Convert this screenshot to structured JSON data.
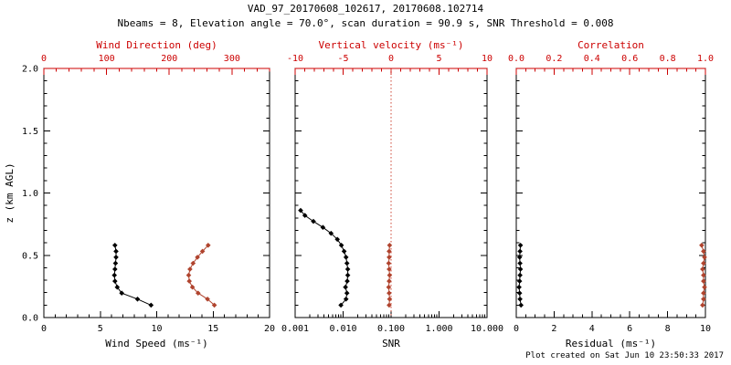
{
  "header": {
    "title": "VAD_97_20170608_102617, 20170608.102714",
    "subtitle": "Nbeams = 8, Elevation angle = 70.0°, scan duration = 90.9 s, SNR Threshold = 0.008"
  },
  "footer": {
    "created": "Plot created on Sat Jun 10 23:50:33 2017"
  },
  "chart_data": {
    "type": "line",
    "title": "VAD_97_20170608_102617, 20170608.102714",
    "subtitle": "Nbeams = 8, Elevation angle = 70.0°, scan duration = 90.9 s, SNR Threshold = 0.008",
    "colors": {
      "axis_black": "#000000",
      "axis_red": "#cc0000",
      "series_red": "#b0442e"
    },
    "y_axis": {
      "label": "z (km AGL)",
      "min": 0,
      "max": 2,
      "major_ticks": [
        0,
        0.5,
        1,
        1.5,
        2
      ],
      "tick_labels": [
        "0.0",
        "0.5",
        "1.0",
        "1.5",
        "2.0"
      ],
      "minor_step": 0.1
    },
    "panels": [
      {
        "name": "wind",
        "bottom_axis": {
          "label": "Wind Speed (ms⁻¹)",
          "scale": "linear",
          "min": 0,
          "max": 20,
          "major_ticks": [
            0,
            5,
            10,
            15,
            20
          ],
          "tick_labels": [
            "0",
            "5",
            "10",
            "15",
            "20"
          ],
          "minor_step": 1,
          "color": "#000000"
        },
        "top_axis": {
          "label": "Wind Direction (deg)",
          "scale": "linear",
          "min": 0,
          "max": 360,
          "major_ticks": [
            0,
            100,
            200,
            300
          ],
          "tick_labels": [
            "0",
            "100",
            "200",
            "300"
          ],
          "minor_step": 20,
          "color": "#cc0000"
        },
        "series": [
          {
            "name": "wind-speed",
            "axis": "bottom",
            "color": "#000000",
            "z": [
              0.1,
              0.148,
              0.196,
              0.244,
              0.292,
              0.34,
              0.388,
              0.436,
              0.484,
              0.532,
              0.58
            ],
            "v": [
              9.5,
              8.3,
              6.9,
              6.5,
              6.3,
              6.25,
              6.3,
              6.35,
              6.4,
              6.4,
              6.3
            ]
          },
          {
            "name": "wind-direction",
            "axis": "top",
            "color": "#b0442e",
            "z": [
              0.1,
              0.148,
              0.196,
              0.244,
              0.292,
              0.34,
              0.388,
              0.436,
              0.484,
              0.532,
              0.58
            ],
            "v": [
              272,
              261,
              246,
              237,
              232,
              231,
              233,
              238,
              245,
              253,
              262
            ]
          }
        ],
        "ref_lines": []
      },
      {
        "name": "snr",
        "bottom_axis": {
          "label": "SNR",
          "scale": "log",
          "min": 0.001,
          "max": 10,
          "major_ticks": [
            0.001,
            0.01,
            0.1,
            1,
            10
          ],
          "tick_labels": [
            "0.001",
            "0.010",
            "0.100",
            "1.000",
            "10.000"
          ],
          "color": "#000000"
        },
        "top_axis": {
          "label": "Vertical velocity (ms⁻¹)",
          "scale": "linear",
          "min": -10,
          "max": 10,
          "major_ticks": [
            -10,
            -5,
            0,
            5,
            10
          ],
          "tick_labels": [
            "-10",
            "-5",
            "0",
            "5",
            "10"
          ],
          "minor_step": 1,
          "color": "#cc0000"
        },
        "series": [
          {
            "name": "snr-profile",
            "axis": "bottom",
            "color": "#000000",
            "z": [
              0.1,
              0.148,
              0.196,
              0.244,
              0.292,
              0.34,
              0.388,
              0.436,
              0.484,
              0.532,
              0.58,
              0.628,
              0.676,
              0.724,
              0.772,
              0.82,
              0.86
            ],
            "v": [
              0.009,
              0.0115,
              0.012,
              0.0112,
              0.0122,
              0.0125,
              0.0125,
              0.012,
              0.0115,
              0.0105,
              0.0092,
              0.0076,
              0.0056,
              0.0038,
              0.0024,
              0.0016,
              0.0013
            ]
          },
          {
            "name": "vertical-velocity",
            "axis": "top",
            "color": "#b0442e",
            "z": [
              0.1,
              0.148,
              0.196,
              0.244,
              0.292,
              0.34,
              0.388,
              0.436,
              0.484,
              0.532,
              0.58
            ],
            "v": [
              -0.2,
              -0.15,
              -0.2,
              -0.25,
              -0.2,
              -0.15,
              -0.2,
              -0.25,
              -0.2,
              -0.2,
              -0.15
            ]
          }
        ],
        "ref_lines": [
          {
            "axis": "top",
            "value": 0,
            "color": "#cc4433",
            "style": "dotted"
          }
        ]
      },
      {
        "name": "residual",
        "bottom_axis": {
          "label": "Residual (ms⁻¹)",
          "scale": "linear",
          "min": 0,
          "max": 10,
          "major_ticks": [
            0,
            2,
            4,
            6,
            8,
            10
          ],
          "tick_labels": [
            "0",
            "2",
            "4",
            "6",
            "8",
            "10"
          ],
          "minor_step": 0.5,
          "color": "#000000"
        },
        "top_axis": {
          "label": "Correlation",
          "scale": "linear",
          "min": 0,
          "max": 1,
          "major_ticks": [
            0,
            0.2,
            0.4,
            0.6,
            0.8,
            1.0
          ],
          "tick_labels": [
            "0.0",
            "0.2",
            "0.4",
            "0.6",
            "0.8",
            "1.0"
          ],
          "minor_step": 0.05,
          "color": "#cc0000"
        },
        "series": [
          {
            "name": "residual",
            "axis": "bottom",
            "color": "#000000",
            "z": [
              0.1,
              0.148,
              0.196,
              0.244,
              0.292,
              0.34,
              0.388,
              0.436,
              0.484,
              0.532,
              0.58
            ],
            "v": [
              0.25,
              0.2,
              0.18,
              0.15,
              0.18,
              0.2,
              0.22,
              0.2,
              0.18,
              0.2,
              0.22
            ]
          },
          {
            "name": "correlation",
            "axis": "top",
            "color": "#b0442e",
            "z": [
              0.1,
              0.148,
              0.196,
              0.244,
              0.292,
              0.34,
              0.388,
              0.436,
              0.484,
              0.532,
              0.58
            ],
            "v": [
              0.985,
              0.99,
              0.99,
              0.995,
              0.99,
              0.99,
              0.985,
              0.99,
              0.995,
              0.99,
              0.98
            ]
          }
        ],
        "ref_lines": []
      }
    ]
  }
}
